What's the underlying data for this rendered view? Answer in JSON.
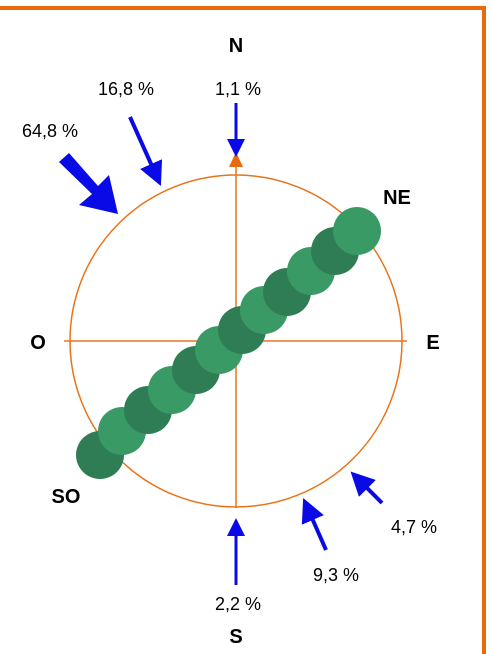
{
  "labels": {
    "north": "N",
    "south": "S",
    "east": "E",
    "west": "O",
    "northeast": "NE",
    "southwest": "SO"
  },
  "percentages": {
    "west_northwest": "64,8 %",
    "north_northwest": "16,8 %",
    "north": "1,1 %",
    "east_southeast": "4,7 %",
    "south_southeast": "9,3 %",
    "south": "2,2 %"
  },
  "colors": {
    "frame": "#e86a10",
    "circle": "#e8741a",
    "arrow": "#0a0ae6",
    "tree_dark": "#2e7d55",
    "tree_light": "#3a9a66",
    "north_marker": "#e86a10"
  }
}
